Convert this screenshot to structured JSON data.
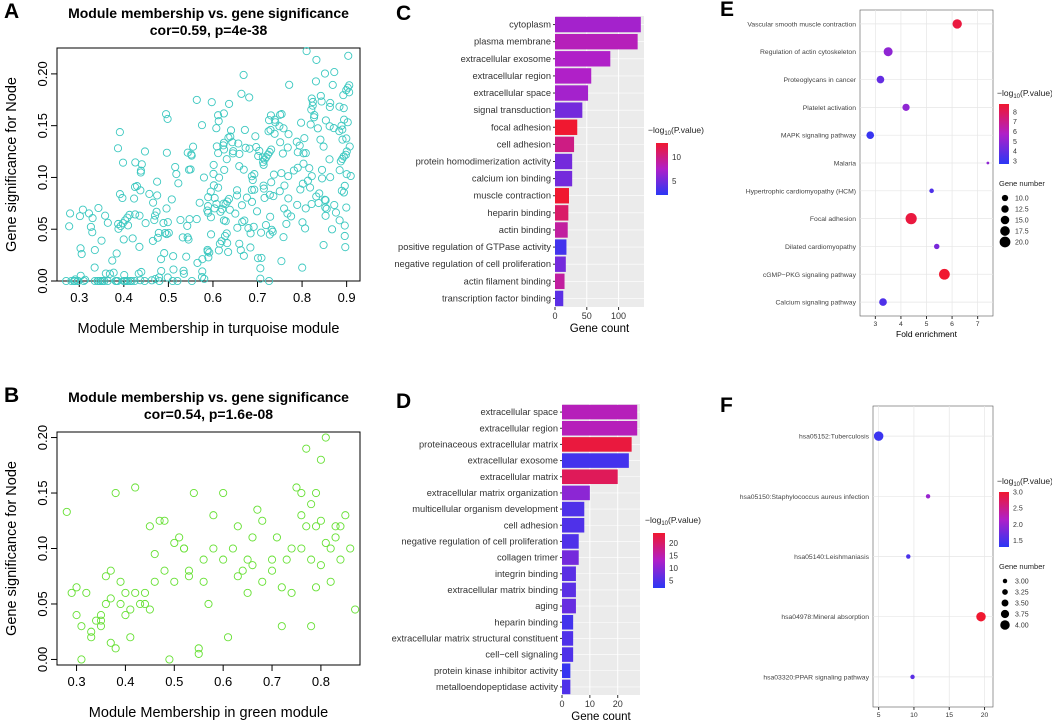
{
  "chart_data": [
    {
      "panel": "A",
      "type": "scatter",
      "title": "Module membership vs. gene significance",
      "subtitle": "cor=0.59, p=4e-38",
      "xlabel": "Module Membership in turquoise module",
      "ylabel": "Gene significance for Node",
      "xlim": [
        0.25,
        0.93
      ],
      "ylim": [
        0.0,
        0.225
      ],
      "xticks": [
        "0.3",
        "0.4",
        "0.5",
        "0.6",
        "0.7",
        "0.8",
        "0.9"
      ],
      "yticks": [
        "0.00",
        "0.05",
        "0.10",
        "0.15",
        "0.20"
      ],
      "color": "#3cc8c0",
      "n_points": 380,
      "seed": 7
    },
    {
      "panel": "B",
      "type": "scatter",
      "title": "Module membership vs. gene significance",
      "subtitle": "cor=0.54, p=1.6e-08",
      "xlabel": "Module Membership in green module",
      "ylabel": "Gene significance for Node",
      "xlim": [
        0.26,
        0.88
      ],
      "ylim": [
        -0.005,
        0.205
      ],
      "xticks": [
        "0.3",
        "0.4",
        "0.5",
        "0.6",
        "0.7",
        "0.8"
      ],
      "yticks": [
        "0.00",
        "0.05",
        "0.10",
        "0.15",
        "0.20"
      ],
      "color": "#66e033",
      "points": [
        [
          0.28,
          0.133
        ],
        [
          0.29,
          0.06
        ],
        [
          0.3,
          0.065
        ],
        [
          0.31,
          0.03
        ],
        [
          0.32,
          0.06
        ],
        [
          0.33,
          0.025
        ],
        [
          0.31,
          0.0
        ],
        [
          0.34,
          0.035
        ],
        [
          0.35,
          0.035
        ],
        [
          0.35,
          0.03
        ],
        [
          0.36,
          0.075
        ],
        [
          0.37,
          0.08
        ],
        [
          0.37,
          0.055
        ],
        [
          0.38,
          0.15
        ],
        [
          0.38,
          0.01
        ],
        [
          0.39,
          0.07
        ],
        [
          0.4,
          0.04
        ],
        [
          0.41,
          0.02
        ],
        [
          0.42,
          0.155
        ],
        [
          0.42,
          0.06
        ],
        [
          0.43,
          0.05
        ],
        [
          0.44,
          0.05
        ],
        [
          0.45,
          0.045
        ],
        [
          0.45,
          0.12
        ],
        [
          0.46,
          0.07
        ],
        [
          0.47,
          0.125
        ],
        [
          0.48,
          0.125
        ],
        [
          0.49,
          0.0
        ],
        [
          0.5,
          0.105
        ],
        [
          0.51,
          0.11
        ],
        [
          0.52,
          0.1
        ],
        [
          0.53,
          0.08
        ],
        [
          0.54,
          0.15
        ],
        [
          0.55,
          0.01
        ],
        [
          0.55,
          0.005
        ],
        [
          0.56,
          0.09
        ],
        [
          0.57,
          0.05
        ],
        [
          0.58,
          0.1
        ],
        [
          0.6,
          0.15
        ],
        [
          0.61,
          0.02
        ],
        [
          0.62,
          0.1
        ],
        [
          0.63,
          0.12
        ],
        [
          0.64,
          0.08
        ],
        [
          0.65,
          0.06
        ],
        [
          0.66,
          0.085
        ],
        [
          0.67,
          0.135
        ],
        [
          0.68,
          0.07
        ],
        [
          0.7,
          0.08
        ],
        [
          0.71,
          0.11
        ],
        [
          0.72,
          0.03
        ],
        [
          0.73,
          0.09
        ],
        [
          0.74,
          0.1
        ],
        [
          0.75,
          0.155
        ],
        [
          0.76,
          0.15
        ],
        [
          0.76,
          0.13
        ],
        [
          0.77,
          0.19
        ],
        [
          0.78,
          0.14
        ],
        [
          0.78,
          0.03
        ],
        [
          0.79,
          0.12
        ],
        [
          0.79,
          0.065
        ],
        [
          0.8,
          0.125
        ],
        [
          0.8,
          0.18
        ],
        [
          0.81,
          0.2
        ],
        [
          0.81,
          0.105
        ],
        [
          0.82,
          0.1
        ],
        [
          0.83,
          0.11
        ],
        [
          0.84,
          0.09
        ],
        [
          0.85,
          0.13
        ],
        [
          0.86,
          0.1
        ],
        [
          0.87,
          0.045
        ],
        [
          0.3,
          0.04
        ],
        [
          0.33,
          0.02
        ],
        [
          0.36,
          0.05
        ],
        [
          0.4,
          0.06
        ],
        [
          0.44,
          0.06
        ],
        [
          0.48,
          0.08
        ],
        [
          0.52,
          0.1
        ],
        [
          0.56,
          0.07
        ],
        [
          0.6,
          0.09
        ],
        [
          0.65,
          0.09
        ],
        [
          0.7,
          0.09
        ],
        [
          0.74,
          0.06
        ],
        [
          0.77,
          0.12
        ],
        [
          0.8,
          0.085
        ],
        [
          0.83,
          0.12
        ],
        [
          0.35,
          0.04
        ],
        [
          0.39,
          0.05
        ],
        [
          0.46,
          0.095
        ],
        [
          0.58,
          0.13
        ],
        [
          0.72,
          0.065
        ],
        [
          0.76,
          0.1
        ],
        [
          0.82,
          0.07
        ],
        [
          0.84,
          0.12
        ],
        [
          0.79,
          0.15
        ],
        [
          0.68,
          0.125
        ],
        [
          0.63,
          0.075
        ],
        [
          0.5,
          0.07
        ],
        [
          0.41,
          0.045
        ],
        [
          0.37,
          0.015
        ],
        [
          0.53,
          0.075
        ],
        [
          0.66,
          0.11
        ],
        [
          0.78,
          0.09
        ]
      ]
    },
    {
      "panel": "C",
      "type": "bar",
      "orientation": "horizontal",
      "xlabel": "Gene count",
      "xlim": [
        0,
        140
      ],
      "xticks": [
        0,
        50,
        100
      ],
      "legend_title": "−log10(P.value)",
      "legend_ticks": [
        "10",
        "5"
      ],
      "color_range": [
        2,
        13
      ],
      "categories": [
        "cytoplasm",
        "plasma membrane",
        "extracellular exosome",
        "extracellular region",
        "extracellular space",
        "signal transduction",
        "focal adhesion",
        "cell adhesion",
        "protein homodimerization activity",
        "calcium ion binding",
        "muscle contraction",
        "heparin binding",
        "actin binding",
        "positive regulation of GTPase activity",
        "negative regulation of cell proliferation",
        "actin filament binding",
        "transcription factor binding"
      ],
      "values": [
        135,
        130,
        87,
        57,
        52,
        43,
        35,
        30,
        27,
        27,
        22,
        21,
        20,
        18,
        17,
        15,
        13
      ],
      "color_values": [
        7,
        8,
        7.5,
        7.5,
        7,
        5,
        13,
        10,
        5,
        5,
        13,
        11,
        9,
        3,
        5,
        9,
        4
      ]
    },
    {
      "panel": "D",
      "type": "bar",
      "orientation": "horizontal",
      "xlabel": "Gene count",
      "xlim": [
        0,
        28
      ],
      "xticks": [
        0,
        10,
        20
      ],
      "legend_title": "−log10(P.value)",
      "legend_ticks": [
        "20",
        "15",
        "10",
        "5"
      ],
      "color_range": [
        2,
        24
      ],
      "categories": [
        "extracellular space",
        "extracellular region",
        "proteinaceous extracellular matrix",
        "extracellular exosome",
        "extracellular matrix",
        "extracellular matrix organization",
        "multicellular organism development",
        "cell adhesion",
        "negative regulation of cell proliferation",
        "collagen trimer",
        "integrin binding",
        "extracellular matrix binding",
        "aging",
        "heparin binding",
        "extracellular matrix structural constituent",
        "cell−cell signaling",
        "protein kinase inhibitor activity",
        "metalloendopeptidase activity"
      ],
      "values": [
        27,
        27,
        25,
        24,
        20,
        10,
        8,
        8,
        6,
        6,
        5,
        5,
        5,
        4,
        4,
        4,
        3,
        3
      ],
      "color_values": [
        14,
        14,
        23,
        4,
        21,
        10,
        5,
        5,
        5,
        8,
        6,
        6,
        7,
        4,
        5,
        5,
        3,
        5
      ]
    },
    {
      "panel": "E",
      "type": "scatter",
      "subtype": "bubble",
      "xlabel": "Fold enrichment",
      "xlim": [
        2.4,
        7.6
      ],
      "xticks": [
        3,
        4,
        5,
        6,
        7
      ],
      "color_legend_title": "−log10(P.value)",
      "color_legend_ticks": [
        "8",
        "7",
        "6",
        "5",
        "4",
        "3"
      ],
      "color_range": [
        2.7,
        8.8
      ],
      "size_legend_title": "Gene number",
      "size_legend": [
        "10.0",
        "12.5",
        "15.0",
        "17.5",
        "20.0"
      ],
      "size_legend_values": [
        10,
        12.5,
        15,
        17.5,
        20
      ],
      "size_range": [
        2,
        21
      ],
      "categories": [
        "Vascular smooth muscle contraction",
        "Regulation of actin cytoskeleton",
        "Proteoglycans in cancer",
        "Platelet activation",
        "MAPK signaling pathway",
        "Malaria",
        "Hypertrophic cardiomyopathy (HCM)",
        "Focal adhesion",
        "Dilated cardiomyopathy",
        "cGMP−PKG signaling pathway",
        "Calcium signaling pathway"
      ],
      "x": [
        6.2,
        3.5,
        3.2,
        4.2,
        2.8,
        7.4,
        5.2,
        4.4,
        5.4,
        5.7,
        3.3
      ],
      "sizes": [
        17,
        16,
        13,
        12,
        13,
        2,
        6,
        21,
        8,
        20,
        13
      ],
      "color_values": [
        8.5,
        5,
        4,
        5,
        3,
        5,
        3.5,
        8.5,
        4.5,
        8.8,
        3.5
      ]
    },
    {
      "panel": "F",
      "type": "scatter",
      "subtype": "bubble",
      "xlabel": "Fold enrichment",
      "xlim": [
        4.2,
        21.2
      ],
      "xticks": [
        5,
        10,
        15,
        20
      ],
      "color_legend_title": "−log10(P.value)",
      "color_legend_ticks": [
        "3.0",
        "2.5",
        "2.0",
        "1.5"
      ],
      "color_range": [
        1.3,
        3.0
      ],
      "size_legend_title": "Gene number",
      "size_legend": [
        "3.00",
        "3.25",
        "3.50",
        "3.75",
        "4.00"
      ],
      "size_legend_values": [
        3.0,
        3.25,
        3.5,
        3.75,
        4.0
      ],
      "size_range": [
        2.6,
        4.1
      ],
      "categories": [
        "hsa05152:Tuberculosis",
        "hsa05150:Staphylococcus aureus infection",
        "hsa05140:Leishmaniasis",
        "hsa04978:Mineral absorption",
        "hsa03320:PPAR signaling pathway"
      ],
      "x": [
        5.0,
        12.0,
        9.2,
        19.5,
        9.8
      ],
      "sizes": [
        4,
        3,
        3,
        4,
        3
      ],
      "color_values": [
        1.4,
        2.0,
        1.5,
        3.0,
        1.6
      ]
    }
  ],
  "panel_labels": [
    "A",
    "B",
    "C",
    "D",
    "E",
    "F"
  ],
  "legend_title_base": "−log",
  "legend_title_sub": "10",
  "legend_title_rest": "(P.value)"
}
